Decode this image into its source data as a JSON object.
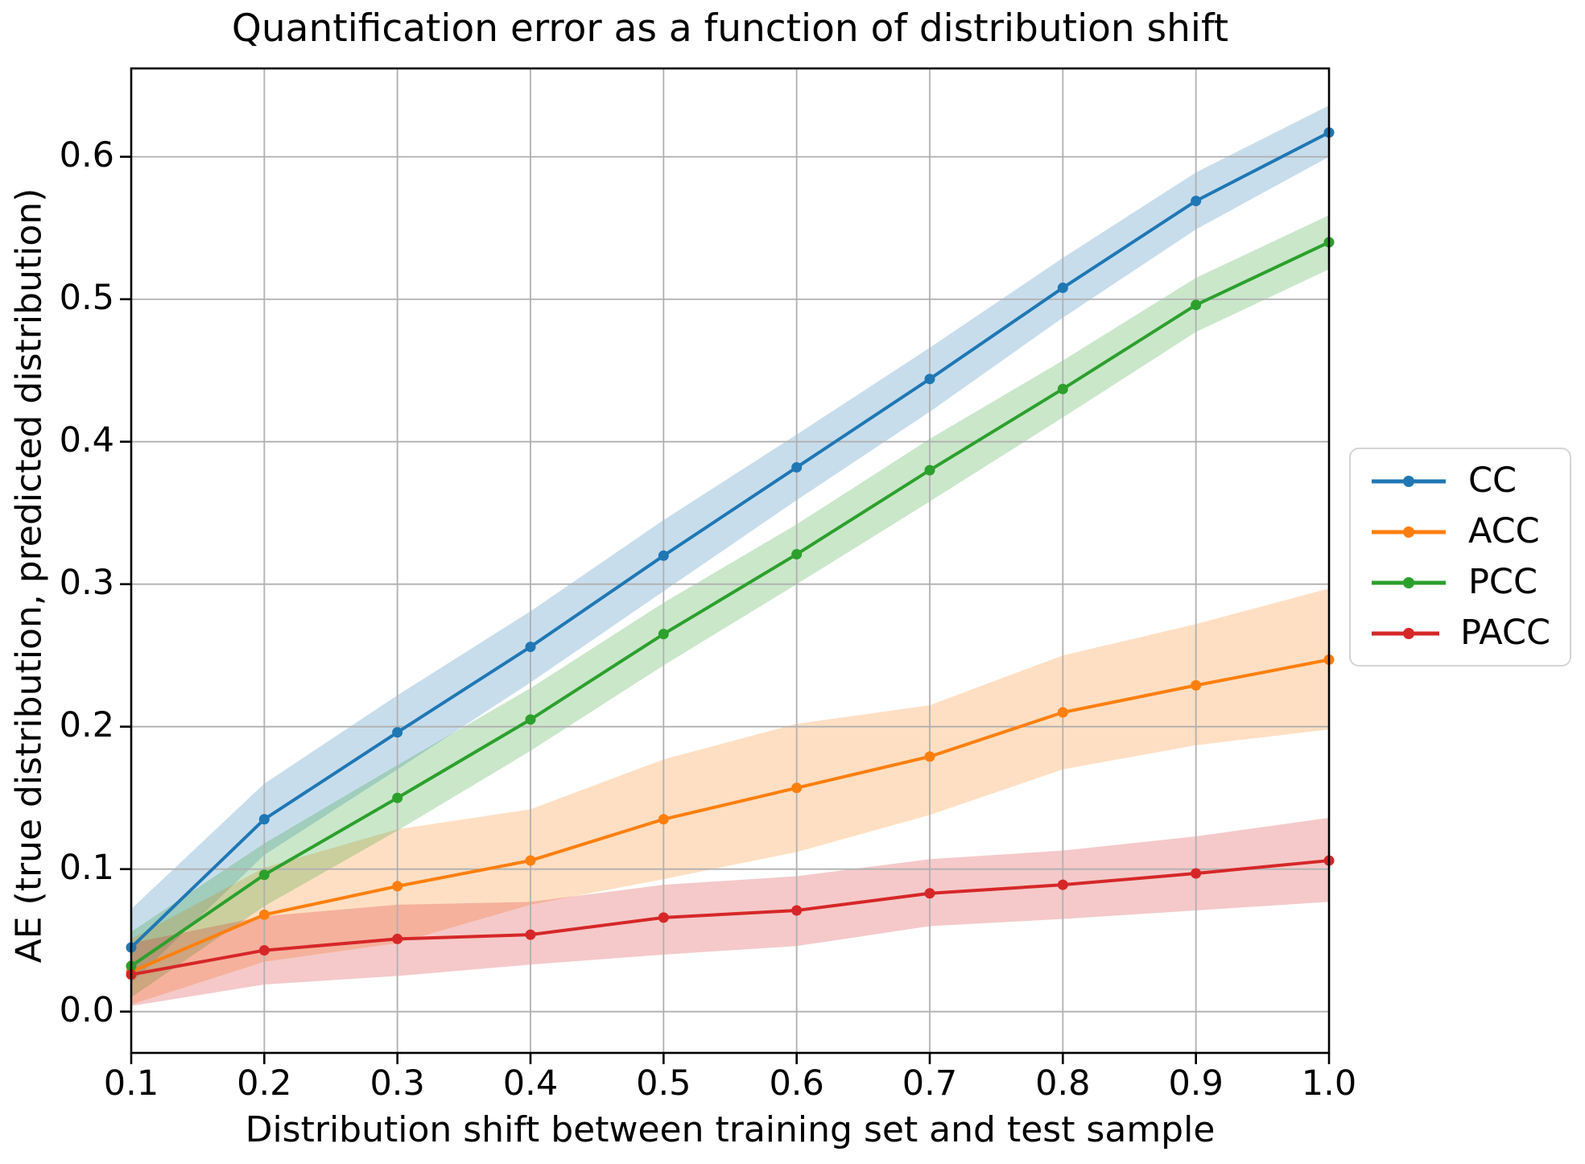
{
  "chart_data": {
    "type": "line",
    "title": "Quantification error as a function of distribution shift",
    "xlabel": "Distribution shift between training set and test sample",
    "ylabel": "AE (true distribution, predicted distribution)",
    "x": [
      0.1,
      0.2,
      0.3,
      0.4,
      0.5,
      0.6,
      0.7,
      0.8,
      0.9,
      1.0
    ],
    "x_tick_labels": [
      "0.1",
      "0.2",
      "0.3",
      "0.4",
      "0.5",
      "0.6",
      "0.7",
      "0.8",
      "0.9",
      "1.0"
    ],
    "y_tick_values": [
      0.0,
      0.1,
      0.2,
      0.3,
      0.4,
      0.5,
      0.6
    ],
    "y_tick_labels": [
      "0.0",
      "0.1",
      "0.2",
      "0.3",
      "0.4",
      "0.5",
      "0.6"
    ],
    "xlim": [
      0.1,
      1.0
    ],
    "ylim": [
      -0.029,
      0.662
    ],
    "grid": true,
    "grid_color": "#b0b0b0",
    "spine_color": "#000000",
    "band_opacity": 0.25,
    "legend_position": "center-right-outside",
    "series": [
      {
        "name": "CC",
        "color": "#1f77b4",
        "values": [
          0.045,
          0.135,
          0.196,
          0.256,
          0.32,
          0.382,
          0.444,
          0.508,
          0.569,
          0.617
        ],
        "band_lo": [
          0.02,
          0.11,
          0.17,
          0.231,
          0.295,
          0.359,
          0.421,
          0.487,
          0.549,
          0.6
        ],
        "band_hi": [
          0.072,
          0.16,
          0.222,
          0.281,
          0.345,
          0.405,
          0.466,
          0.529,
          0.589,
          0.636
        ]
      },
      {
        "name": "ACC",
        "color": "#ff7f0e",
        "values": [
          0.028,
          0.068,
          0.088,
          0.106,
          0.135,
          0.157,
          0.179,
          0.21,
          0.229,
          0.247
        ],
        "band_lo": [
          0.005,
          0.035,
          0.048,
          0.075,
          0.093,
          0.112,
          0.138,
          0.17,
          0.187,
          0.198
        ],
        "band_hi": [
          0.051,
          0.101,
          0.128,
          0.142,
          0.177,
          0.202,
          0.215,
          0.25,
          0.272,
          0.297
        ]
      },
      {
        "name": "PCC",
        "color": "#2ca02c",
        "values": [
          0.032,
          0.096,
          0.15,
          0.205,
          0.265,
          0.321,
          0.38,
          0.437,
          0.496,
          0.54
        ],
        "band_lo": [
          0.01,
          0.074,
          0.127,
          0.183,
          0.243,
          0.3,
          0.358,
          0.417,
          0.477,
          0.521
        ],
        "band_hi": [
          0.056,
          0.118,
          0.173,
          0.227,
          0.287,
          0.342,
          0.402,
          0.457,
          0.515,
          0.559
        ]
      },
      {
        "name": "PACC",
        "color": "#d62728",
        "values": [
          0.026,
          0.043,
          0.051,
          0.054,
          0.066,
          0.071,
          0.083,
          0.089,
          0.097,
          0.106
        ],
        "band_lo": [
          0.004,
          0.019,
          0.025,
          0.033,
          0.04,
          0.046,
          0.06,
          0.065,
          0.071,
          0.077
        ],
        "band_hi": [
          0.048,
          0.067,
          0.075,
          0.077,
          0.089,
          0.095,
          0.107,
          0.113,
          0.123,
          0.136
        ]
      }
    ]
  }
}
